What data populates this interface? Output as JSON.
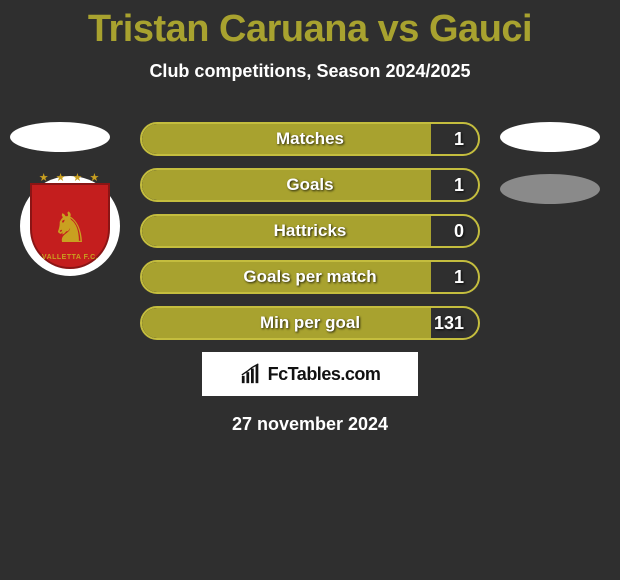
{
  "title": "Tristan Caruana vs Gauci",
  "subtitle": "Club competitions, Season 2024/2025",
  "date": "27 november 2024",
  "brand": "FcTables.com",
  "colors": {
    "accent": "#a8a22f",
    "accent_border": "#c4bd3e",
    "text": "#ffffff",
    "bg": "#2f2f2f"
  },
  "bars": [
    {
      "label": "Matches",
      "value": "1",
      "fill_pct": 86
    },
    {
      "label": "Goals",
      "value": "1",
      "fill_pct": 86
    },
    {
      "label": "Hattricks",
      "value": "0",
      "fill_pct": 86
    },
    {
      "label": "Goals per match",
      "value": "1",
      "fill_pct": 86
    },
    {
      "label": "Min per goal",
      "value": "131",
      "fill_pct": 86
    }
  ]
}
